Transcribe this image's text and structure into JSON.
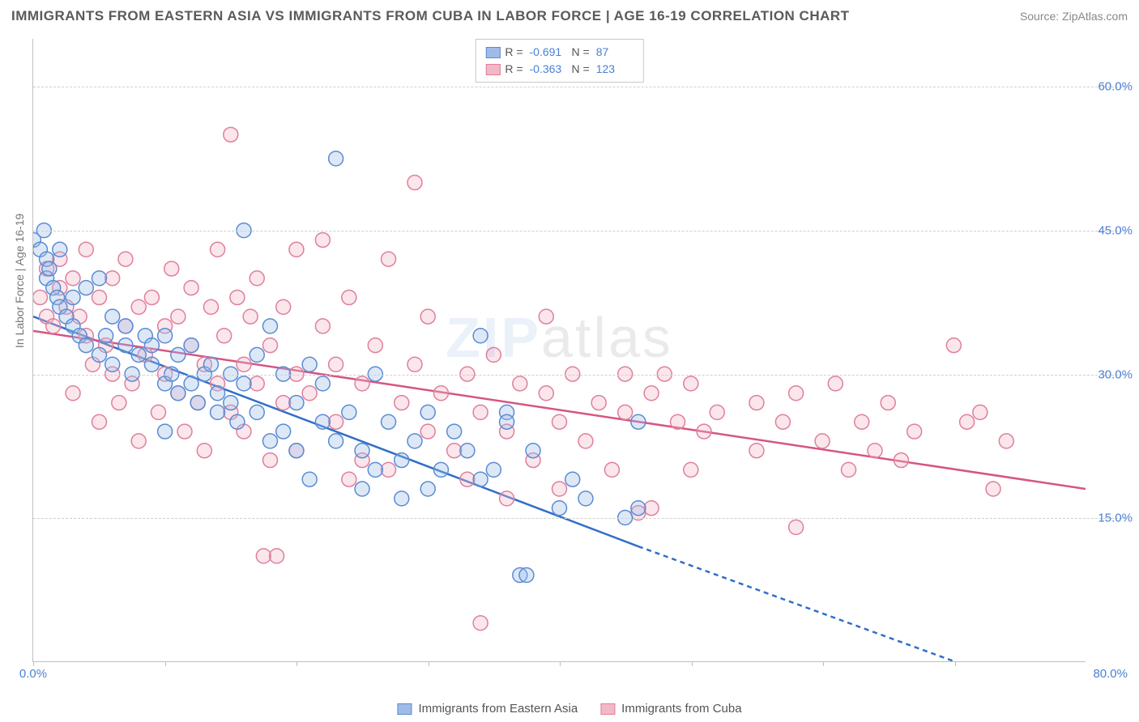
{
  "title": "IMMIGRANTS FROM EASTERN ASIA VS IMMIGRANTS FROM CUBA IN LABOR FORCE | AGE 16-19 CORRELATION CHART",
  "source": "Source: ZipAtlas.com",
  "watermark": {
    "part1": "ZIP",
    "part2": "atlas"
  },
  "yaxis_label": "In Labor Force | Age 16-19",
  "chart": {
    "type": "scatter",
    "background_color": "#ffffff",
    "grid_color": "#d0d0d0",
    "grid_dash": "4,4",
    "axis_color": "#bfbfbf",
    "tick_color": "#4a7fd6",
    "xlim": [
      0,
      80
    ],
    "ylim": [
      0,
      65
    ],
    "ytick_values": [
      15,
      30,
      45,
      60
    ],
    "ytick_labels": [
      "15.0%",
      "30.0%",
      "45.0%",
      "60.0%"
    ],
    "xtick_marks": [
      0,
      10,
      20,
      30,
      40,
      50,
      60,
      70
    ],
    "xlabel_min": "0.0%",
    "xlabel_max": "80.0%",
    "point_radius": 9,
    "point_opacity": 0.35,
    "line_width": 2.5,
    "label_fontsize": 14
  },
  "series": {
    "a": {
      "name": "Immigrants from Eastern Asia",
      "fill": "#9fbce8",
      "stroke": "#5a8bd4",
      "line_color": "#2f6fc9",
      "R": "-0.691",
      "N": "87",
      "trend": {
        "x1": 0,
        "y1": 36,
        "x2_solid": 46,
        "y2_solid": 12,
        "x2_dash": 76,
        "y2_dash": -3
      },
      "points": [
        [
          0,
          44
        ],
        [
          0.5,
          43
        ],
        [
          0.8,
          45
        ],
        [
          1,
          42
        ],
        [
          1,
          40
        ],
        [
          1.2,
          41
        ],
        [
          1.5,
          39
        ],
        [
          1.8,
          38
        ],
        [
          2,
          43
        ],
        [
          2,
          37
        ],
        [
          2.5,
          36
        ],
        [
          3,
          38
        ],
        [
          3,
          35
        ],
        [
          3.5,
          34
        ],
        [
          4,
          39
        ],
        [
          4,
          33
        ],
        [
          5,
          40
        ],
        [
          5,
          32
        ],
        [
          5.5,
          34
        ],
        [
          6,
          36
        ],
        [
          6,
          31
        ],
        [
          7,
          33
        ],
        [
          7,
          35
        ],
        [
          7.5,
          30
        ],
        [
          8,
          32
        ],
        [
          8.5,
          34
        ],
        [
          9,
          31
        ],
        [
          9,
          33
        ],
        [
          10,
          29
        ],
        [
          10,
          34
        ],
        [
          10,
          24
        ],
        [
          10.5,
          30
        ],
        [
          11,
          32
        ],
        [
          11,
          28
        ],
        [
          12,
          29
        ],
        [
          12,
          33
        ],
        [
          12.5,
          27
        ],
        [
          13,
          30
        ],
        [
          13.5,
          31
        ],
        [
          14,
          28
        ],
        [
          14,
          26
        ],
        [
          15,
          30
        ],
        [
          15,
          27
        ],
        [
          15.5,
          25
        ],
        [
          16,
          45
        ],
        [
          16,
          29
        ],
        [
          17,
          26
        ],
        [
          17,
          32
        ],
        [
          18,
          23
        ],
        [
          18,
          35
        ],
        [
          19,
          24
        ],
        [
          19,
          30
        ],
        [
          20,
          22
        ],
        [
          20,
          27
        ],
        [
          21,
          31
        ],
        [
          21,
          19
        ],
        [
          22,
          25
        ],
        [
          22,
          29
        ],
        [
          23,
          23
        ],
        [
          23,
          52.5
        ],
        [
          24,
          26
        ],
        [
          25,
          22
        ],
        [
          25,
          18
        ],
        [
          26,
          30
        ],
        [
          26,
          20
        ],
        [
          27,
          25
        ],
        [
          28,
          21
        ],
        [
          28,
          17
        ],
        [
          29,
          23
        ],
        [
          30,
          26
        ],
        [
          30,
          18
        ],
        [
          31,
          20
        ],
        [
          32,
          24
        ],
        [
          33,
          22
        ],
        [
          34,
          19
        ],
        [
          34,
          34
        ],
        [
          35,
          20
        ],
        [
          36,
          26
        ],
        [
          36,
          25
        ],
        [
          37,
          9
        ],
        [
          37.5,
          9
        ],
        [
          38,
          22
        ],
        [
          40,
          16
        ],
        [
          41,
          19
        ],
        [
          42,
          17
        ],
        [
          45,
          15
        ],
        [
          46,
          16
        ],
        [
          46,
          25
        ]
      ]
    },
    "b": {
      "name": "Immigrants from Cuba",
      "fill": "#f2b8c6",
      "stroke": "#e07f9b",
      "line_color": "#d65583",
      "R": "-0.363",
      "N": "123",
      "trend": {
        "x1": 0,
        "y1": 34.5,
        "x2_solid": 80,
        "y2_solid": 18
      },
      "points": [
        [
          0.5,
          38
        ],
        [
          1,
          36
        ],
        [
          1,
          41
        ],
        [
          1.5,
          35
        ],
        [
          2,
          39
        ],
        [
          2,
          42
        ],
        [
          2.5,
          37
        ],
        [
          3,
          40
        ],
        [
          3,
          28
        ],
        [
          3.5,
          36
        ],
        [
          4,
          34
        ],
        [
          4,
          43
        ],
        [
          4.5,
          31
        ],
        [
          5,
          25
        ],
        [
          5,
          38
        ],
        [
          5.5,
          33
        ],
        [
          6,
          30
        ],
        [
          6,
          40
        ],
        [
          6.5,
          27
        ],
        [
          7,
          42
        ],
        [
          7,
          35
        ],
        [
          7.5,
          29
        ],
        [
          8,
          37
        ],
        [
          8,
          23
        ],
        [
          8.5,
          32
        ],
        [
          9,
          38
        ],
        [
          9.5,
          26
        ],
        [
          10,
          35
        ],
        [
          10,
          30
        ],
        [
          10.5,
          41
        ],
        [
          11,
          28
        ],
        [
          11,
          36
        ],
        [
          11.5,
          24
        ],
        [
          12,
          33
        ],
        [
          12,
          39
        ],
        [
          12.5,
          27
        ],
        [
          13,
          31
        ],
        [
          13,
          22
        ],
        [
          13.5,
          37
        ],
        [
          14,
          43
        ],
        [
          14,
          29
        ],
        [
          14.5,
          34
        ],
        [
          15,
          55
        ],
        [
          15,
          26
        ],
        [
          15.5,
          38
        ],
        [
          16,
          31
        ],
        [
          16,
          24
        ],
        [
          16.5,
          36
        ],
        [
          17,
          29
        ],
        [
          17,
          40
        ],
        [
          17.5,
          11
        ],
        [
          18,
          33
        ],
        [
          18,
          21
        ],
        [
          18.5,
          11
        ],
        [
          19,
          37
        ],
        [
          19,
          27
        ],
        [
          20,
          43
        ],
        [
          20,
          30
        ],
        [
          20,
          22
        ],
        [
          21,
          28
        ],
        [
          22,
          35
        ],
        [
          22,
          44
        ],
        [
          23,
          25
        ],
        [
          23,
          31
        ],
        [
          24,
          19
        ],
        [
          24,
          38
        ],
        [
          25,
          29
        ],
        [
          25,
          21
        ],
        [
          26,
          33
        ],
        [
          27,
          42
        ],
        [
          27,
          20
        ],
        [
          28,
          27
        ],
        [
          29,
          31
        ],
        [
          29,
          50
        ],
        [
          30,
          24
        ],
        [
          30,
          36
        ],
        [
          31,
          28
        ],
        [
          32,
          22
        ],
        [
          33,
          30
        ],
        [
          33,
          19
        ],
        [
          34,
          4
        ],
        [
          34,
          26
        ],
        [
          35,
          32
        ],
        [
          36,
          24
        ],
        [
          36,
          17
        ],
        [
          37,
          29
        ],
        [
          38,
          21
        ],
        [
          39,
          28
        ],
        [
          39,
          36
        ],
        [
          40,
          25
        ],
        [
          40,
          18
        ],
        [
          41,
          30
        ],
        [
          42,
          23
        ],
        [
          43,
          27
        ],
        [
          44,
          20
        ],
        [
          45,
          30
        ],
        [
          45,
          26
        ],
        [
          46,
          15.5
        ],
        [
          47,
          16
        ],
        [
          47,
          28
        ],
        [
          48,
          30
        ],
        [
          49,
          25
        ],
        [
          50,
          29
        ],
        [
          50,
          20
        ],
        [
          51,
          24
        ],
        [
          52,
          26
        ],
        [
          55,
          22
        ],
        [
          55,
          27
        ],
        [
          57,
          25
        ],
        [
          58,
          28
        ],
        [
          58,
          14
        ],
        [
          60,
          23
        ],
        [
          61,
          29
        ],
        [
          62,
          20
        ],
        [
          63,
          25
        ],
        [
          64,
          22
        ],
        [
          65,
          27
        ],
        [
          66,
          21
        ],
        [
          67,
          24
        ],
        [
          70,
          33
        ],
        [
          71,
          25
        ],
        [
          72,
          26
        ],
        [
          73,
          18
        ],
        [
          74,
          23
        ]
      ]
    }
  },
  "top_legend": {
    "R_label": "R =",
    "N_label": "N ="
  },
  "colors": {
    "title": "#5a5a5a",
    "source": "#888888",
    "tick": "#4a7fd6"
  }
}
